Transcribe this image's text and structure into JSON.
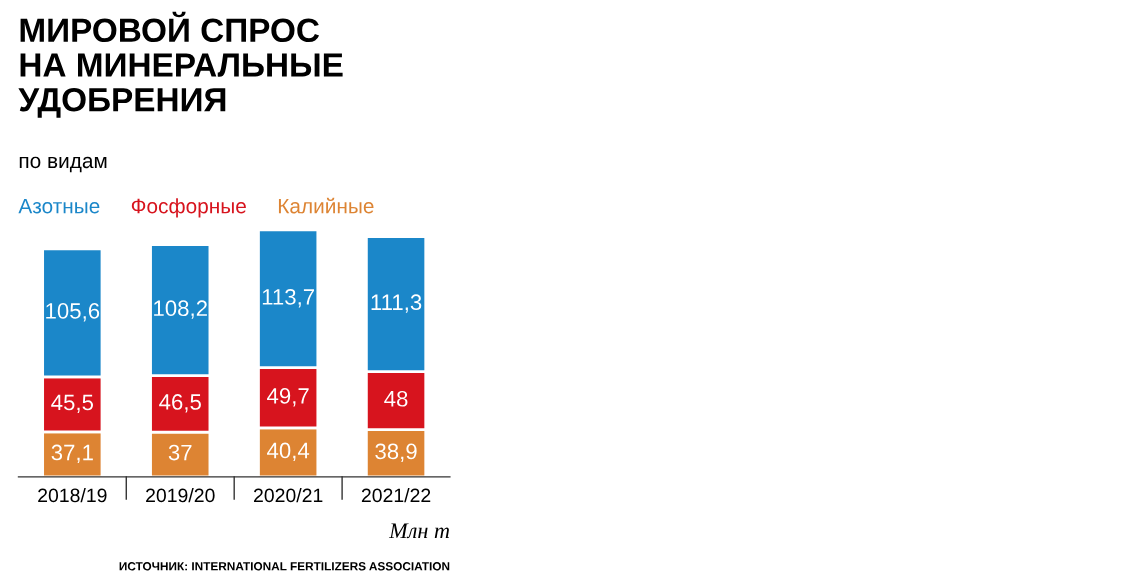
{
  "chart_data": {
    "type": "bar",
    "stacked": true,
    "title": "МИРОВОЙ СПРОС\nНА МИНЕРАЛЬНЫЕ\nУДОБРЕНИЯ",
    "subtitle": "по видам",
    "categories": [
      "2018/19",
      "2019/20",
      "2020/21",
      "2021/22"
    ],
    "series": [
      {
        "name": "Калийные",
        "color": "#dd8433",
        "values": [
          37.1,
          37,
          40.4,
          38.9
        ],
        "value_labels": [
          "37,1",
          "37",
          "40,4",
          "38,9"
        ]
      },
      {
        "name": "Фосфорные",
        "color": "#d7141e",
        "values": [
          45.5,
          46.5,
          49.7,
          48
        ],
        "value_labels": [
          "45,5",
          "46,5",
          "49,7",
          "48"
        ]
      },
      {
        "name": "Азотные",
        "color": "#1b87c9",
        "values": [
          105.6,
          108.2,
          113.7,
          111.3
        ],
        "value_labels": [
          "105,6",
          "108,2",
          "113,7",
          "111,3"
        ]
      }
    ],
    "legend": "top",
    "grid": false,
    "tick_labels": "x",
    "annotations": [
      "Млн т",
      "ИСТОЧНИК: INTERNATIONAL FERTILIZERS ASSOCIATION"
    ]
  }
}
